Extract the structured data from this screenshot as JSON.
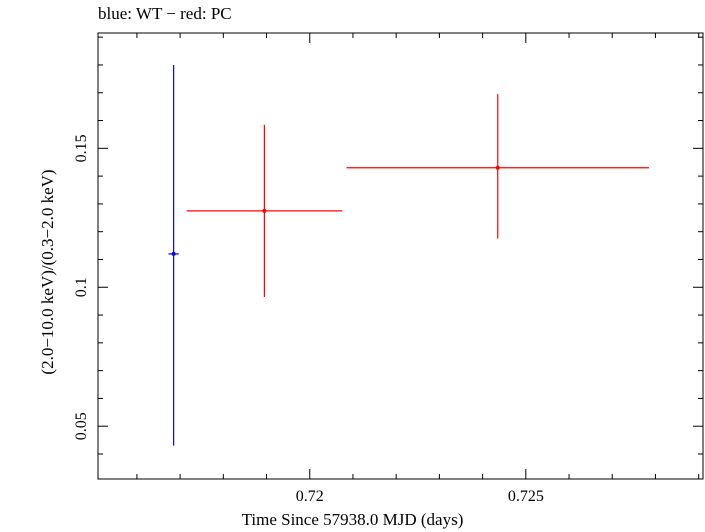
{
  "chart_data": {
    "type": "scatter",
    "title": "blue: WT − red: PC",
    "xlabel": "Time Since 57938.0 MJD (days)",
    "ylabel": "(2.0−10.0 keV)/(0.3−2.0 keV)",
    "xlim": [
      0.7151,
      0.7291
    ],
    "ylim": [
      0.031,
      0.1915
    ],
    "x_ticks": [
      {
        "value": 0.72,
        "label": "0.72"
      },
      {
        "value": 0.725,
        "label": "0.725"
      }
    ],
    "y_ticks": [
      {
        "value": 0.05,
        "label": "0.05"
      },
      {
        "value": 0.1,
        "label": "0.1"
      },
      {
        "value": 0.15,
        "label": "0.15"
      }
    ],
    "grid": false,
    "series": [
      {
        "name": "WT",
        "color": "#0000ff",
        "points": [
          {
            "x": 0.71685,
            "xlo": 0.71673,
            "xhi": 0.71697,
            "y": 0.112,
            "ylo": 0.043,
            "yhi": 0.18
          }
        ]
      },
      {
        "name": "PC",
        "color": "#ff0000",
        "points": [
          {
            "x": 0.71895,
            "xlo": 0.71715,
            "xhi": 0.72075,
            "y": 0.1275,
            "ylo": 0.0965,
            "yhi": 0.1585
          },
          {
            "x": 0.72435,
            "xlo": 0.72085,
            "xhi": 0.72785,
            "y": 0.143,
            "ylo": 0.1175,
            "yhi": 0.1695
          }
        ]
      }
    ]
  }
}
